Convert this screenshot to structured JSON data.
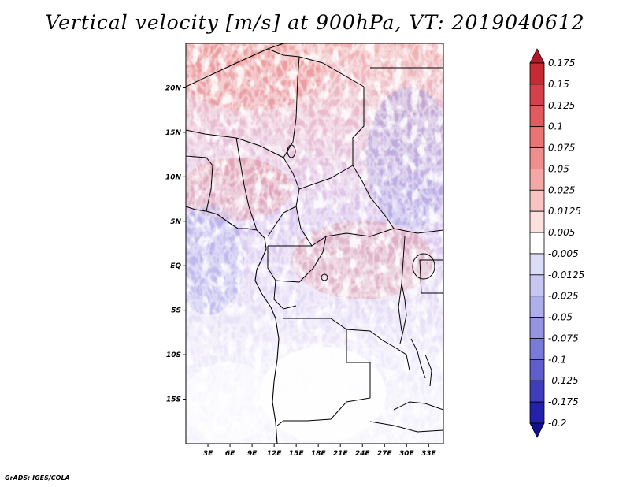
{
  "title": "Vertical velocity [m/s] at 900hPa, VT: 2019040612",
  "credit": "GrADS: IGES/COLA",
  "map": {
    "lat_range": [
      -20,
      25
    ],
    "lon_range": [
      0,
      35
    ],
    "lat_ticks": [
      {
        "value": 20,
        "label": "20N"
      },
      {
        "value": 15,
        "label": "15N"
      },
      {
        "value": 10,
        "label": "10N"
      },
      {
        "value": 5,
        "label": "5N"
      },
      {
        "value": 0,
        "label": "EQ"
      },
      {
        "value": -5,
        "label": "5S"
      },
      {
        "value": -10,
        "label": "10S"
      },
      {
        "value": -15,
        "label": "15S"
      }
    ],
    "lon_ticks": [
      {
        "value": 3,
        "label": "3E"
      },
      {
        "value": 6,
        "label": "6E"
      },
      {
        "value": 9,
        "label": "9E"
      },
      {
        "value": 12,
        "label": "12E"
      },
      {
        "value": 15,
        "label": "15E"
      },
      {
        "value": 18,
        "label": "18E"
      },
      {
        "value": 21,
        "label": "21E"
      },
      {
        "value": 24,
        "label": "24E"
      },
      {
        "value": 27,
        "label": "27E"
      },
      {
        "value": 30,
        "label": "30E"
      },
      {
        "value": 33,
        "label": "33E"
      }
    ]
  },
  "colorbar": {
    "levels": [
      "0.175",
      "0.15",
      "0.125",
      "0.1",
      "0.075",
      "0.05",
      "0.025",
      "0.0125",
      "0.005",
      "-0.005",
      "-0.0125",
      "-0.025",
      "-0.05",
      "-0.075",
      "-0.1",
      "-0.125",
      "-0.175",
      "-0.2"
    ],
    "colors": [
      "#b2182b",
      "#c62b34",
      "#d6404a",
      "#e05a5e",
      "#e87474",
      "#f08e8e",
      "#f4a8a6",
      "#f8c4c2",
      "#fce0de",
      "#ffffff",
      "#dcdcf6",
      "#c6c6f0",
      "#aeaeea",
      "#9494e2",
      "#7a7ad8",
      "#5e5ecc",
      "#3e3ebc",
      "#2222a8",
      "#10108c"
    ]
  }
}
